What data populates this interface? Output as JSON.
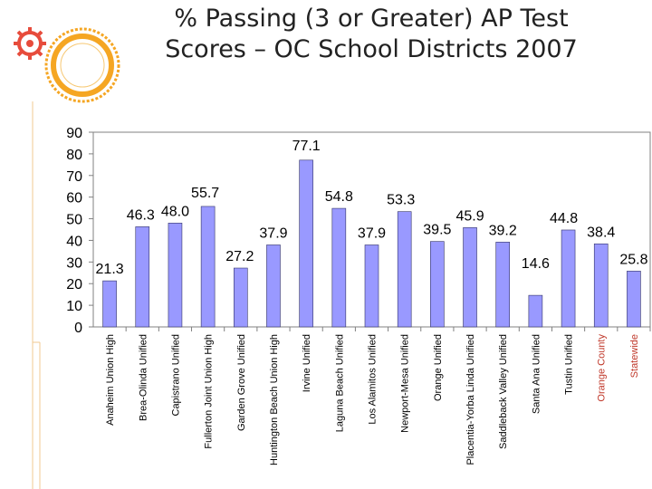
{
  "slide": {
    "title_line1": "% Passing (3 or Greater) AP Test",
    "title_line2": "Scores – OC School Districts 2007"
  },
  "icons": {
    "left": "gear-icon",
    "right": "ring-icon"
  },
  "colors": {
    "bar": "#9999ff",
    "bar_stroke": "#333366",
    "accent": "#f5a623",
    "label_orange": "#c0392b"
  },
  "chart_data": {
    "type": "bar",
    "title": "% Passing (3 or Greater) AP Test Scores – OC School Districts 2007",
    "categories": [
      "Anaheim Union High",
      "Brea-Olinda Unified",
      "Capistrano Unified",
      "Fullerton Joint Union High",
      "Garden Grove Unified",
      "Huntington Beach Union High",
      "Irvine Unified",
      "Laguna Beach Unified",
      "Los Alamitos Unified",
      "Newport-Mesa Unified",
      "Orange Unified",
      "Placentia-Yorba Linda Unified",
      "Saddleback Valley Unified",
      "Santa Ana Unified",
      "Tustin Unified",
      "Orange County",
      "Statewide"
    ],
    "values": [
      21.3,
      46.3,
      48.0,
      55.7,
      27.2,
      37.9,
      77.1,
      54.8,
      37.9,
      53.3,
      39.5,
      45.9,
      39.2,
      14.6,
      44.8,
      38.4,
      25.8
    ],
    "data_labels": [
      "21.3",
      "46.3",
      "48.0",
      "55.7",
      "27.2",
      "37.9",
      "77.1",
      "54.8",
      "37.9",
      "53.3",
      "39.5",
      "45.9",
      "39.2",
      "14.6",
      "44.8",
      "38.4",
      "25.8"
    ],
    "ylim": [
      0,
      90
    ],
    "yticks": [
      0,
      10,
      20,
      30,
      40,
      50,
      60,
      70,
      80,
      90
    ],
    "grid": false,
    "xlabel": "",
    "ylabel": ""
  }
}
